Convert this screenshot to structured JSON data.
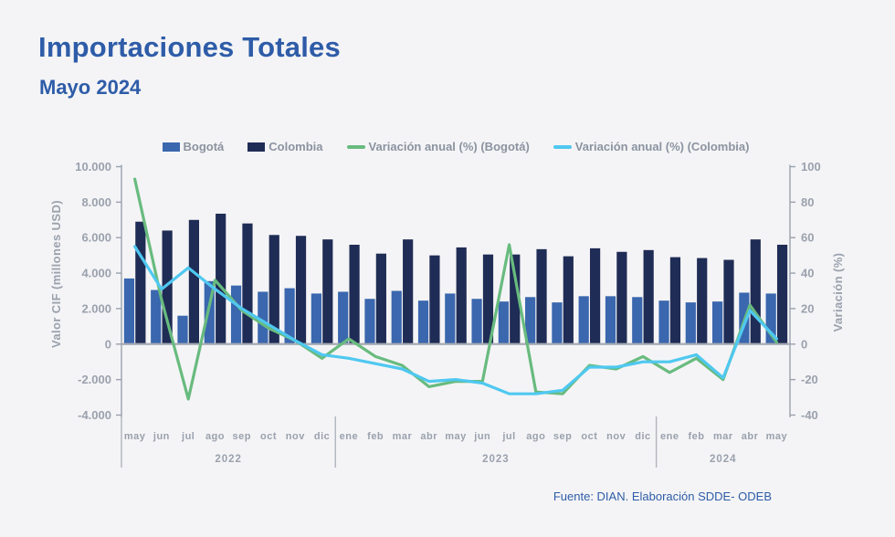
{
  "header": {
    "title": "Importaciones Totales",
    "subtitle": "Mayo 2024"
  },
  "footer": {
    "source": "Fuente: DIAN. Elaboración SDDE- ODEB"
  },
  "colors": {
    "background": "#f4f4f6",
    "title_blue": "#2e5ca8",
    "axis_text": "#9aa1ad",
    "legend_text": "#8b93a0",
    "zero_line": "#a7abb3",
    "separator": "#b0b4bc"
  },
  "chart_data": {
    "type": "bar",
    "subtype": "combo bar+line, dual axis",
    "title": "Importaciones Totales - Mayo 2024",
    "legend_position": "top",
    "grid": false,
    "categories": [
      "may",
      "jun",
      "jul",
      "ago",
      "sep",
      "oct",
      "nov",
      "dic",
      "ene",
      "feb",
      "mar",
      "abr",
      "may",
      "jun",
      "jul",
      "ago",
      "sep",
      "oct",
      "nov",
      "dic",
      "ene",
      "feb",
      "mar",
      "abr",
      "may"
    ],
    "year_groups": [
      {
        "label": "2022",
        "months": 8
      },
      {
        "label": "2023",
        "months": 12
      },
      {
        "label": "2024",
        "months": 5
      }
    ],
    "left_axis": {
      "title": "Valor CIF (millones USD)",
      "tick_labels": [
        "10.000",
        "8.000",
        "6.000",
        "4.000",
        "2.000",
        "0",
        "-2.000",
        "-4.000"
      ],
      "tick_values": [
        10000,
        8000,
        6000,
        4000,
        2000,
        0,
        -2000,
        -4000
      ],
      "range": [
        -4000,
        10000
      ]
    },
    "right_axis": {
      "title": "Variación (%)",
      "tick_labels": [
        "100",
        "80",
        "60",
        "40",
        "20",
        "0",
        "-20",
        "-40"
      ],
      "tick_values": [
        100,
        80,
        60,
        40,
        20,
        0,
        -20,
        -40
      ],
      "range": [
        -40,
        100
      ]
    },
    "series": [
      {
        "name": "Bogotá",
        "type": "bar",
        "axis": "left",
        "color": "#3a67ae",
        "values": [
          3700,
          3050,
          1600,
          3550,
          3300,
          2950,
          3150,
          2850,
          2950,
          2550,
          3000,
          2450,
          2850,
          2550,
          2400,
          2650,
          2350,
          2700,
          2700,
          2650,
          2450,
          2350,
          2400,
          2900,
          2850
        ]
      },
      {
        "name": "Colombia",
        "type": "bar",
        "axis": "left",
        "color": "#1f2c55",
        "values": [
          6900,
          6400,
          7000,
          7350,
          6800,
          6150,
          6100,
          5900,
          5600,
          5100,
          5900,
          5000,
          5450,
          5050,
          5050,
          5350,
          4950,
          5400,
          5200,
          5300,
          4900,
          4850,
          4750,
          5900,
          5600
        ]
      },
      {
        "name": "Variación anual (%) (Bogotá)",
        "type": "line",
        "axis": "right",
        "color": "#68bb7e",
        "values": [
          93,
          25,
          -31,
          36,
          19,
          9,
          2,
          -8,
          3,
          -7,
          -12,
          -24,
          -21,
          -21,
          56,
          -27,
          -28,
          -12,
          -14,
          -7,
          -16,
          -8,
          -20,
          22,
          1
        ]
      },
      {
        "name": "Variación anual (%) (Colombia)",
        "type": "line",
        "axis": "right",
        "color": "#4fc8f0",
        "values": [
          55,
          31,
          43,
          31,
          20,
          11,
          2,
          -6,
          -8,
          -11,
          -14,
          -21,
          -20,
          -22,
          -28,
          -28,
          -26,
          -13,
          -13,
          -10,
          -10,
          -6,
          -19,
          19,
          3
        ]
      }
    ]
  }
}
